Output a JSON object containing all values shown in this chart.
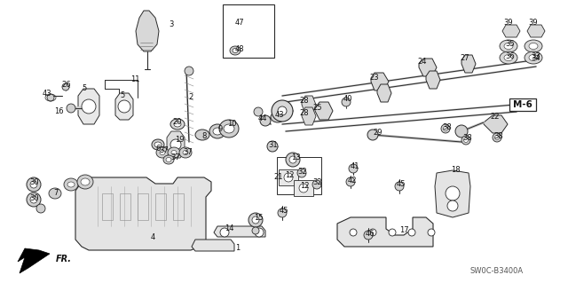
{
  "background_color": "#ffffff",
  "diagram_code": "SW0C-B3400A",
  "m_label": "M-6",
  "fr_label": "FR.",
  "figsize": [
    6.4,
    3.19
  ],
  "dpi": 100,
  "line_color": "#2a2a2a",
  "text_color": "#111111",
  "font_size": 6.0
}
